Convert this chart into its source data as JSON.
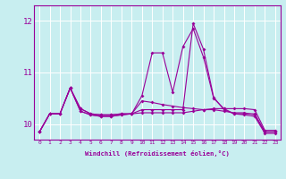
{
  "xlabel": "Windchill (Refroidissement éolien,°C)",
  "x_ticks": [
    0,
    1,
    2,
    3,
    4,
    5,
    6,
    7,
    8,
    9,
    10,
    11,
    12,
    13,
    14,
    15,
    16,
    17,
    18,
    19,
    20,
    21,
    22,
    23
  ],
  "ylim": [
    9.7,
    12.3
  ],
  "yticks": [
    10,
    11,
    12
  ],
  "bg_color": "#c8eef0",
  "grid_color": "#ffffff",
  "line_color": "#990099",
  "line1_y": [
    9.85,
    10.2,
    10.2,
    10.7,
    10.3,
    10.2,
    10.18,
    10.18,
    10.2,
    10.2,
    10.22,
    10.22,
    10.22,
    10.22,
    10.22,
    10.25,
    10.28,
    10.3,
    10.3,
    10.3,
    10.3,
    10.28,
    9.88,
    9.88
  ],
  "line2_y": [
    9.85,
    10.2,
    10.2,
    10.7,
    10.3,
    10.2,
    10.18,
    10.18,
    10.2,
    10.2,
    10.45,
    10.42,
    10.38,
    10.35,
    10.32,
    10.3,
    10.28,
    10.28,
    10.25,
    10.22,
    10.22,
    10.18,
    9.85,
    9.85
  ],
  "line3_y": [
    9.85,
    10.2,
    10.2,
    10.7,
    10.25,
    10.18,
    10.15,
    10.15,
    10.18,
    10.2,
    10.55,
    11.38,
    11.38,
    10.62,
    11.5,
    11.85,
    11.3,
    10.5,
    10.3,
    10.2,
    10.2,
    10.2,
    9.85,
    9.85
  ],
  "line4_y": [
    9.85,
    10.2,
    10.2,
    10.7,
    10.25,
    10.18,
    10.15,
    10.15,
    10.18,
    10.2,
    10.28,
    10.28,
    10.28,
    10.28,
    10.28,
    11.95,
    11.45,
    10.52,
    10.28,
    10.2,
    10.18,
    10.15,
    9.82,
    9.82
  ]
}
